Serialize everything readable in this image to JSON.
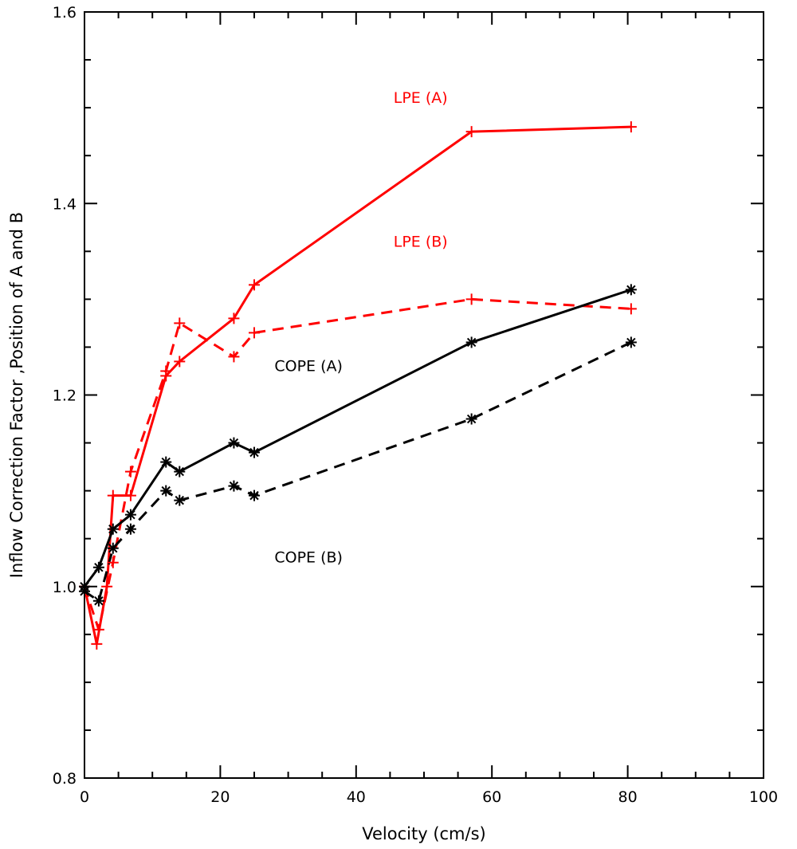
{
  "colors": {
    "lpe": "#ff0000",
    "cope": "#000000",
    "axes": "#000000",
    "background": "#ffffff"
  },
  "chart_data": {
    "type": "line",
    "title": "",
    "xlabel": "Velocity (cm/s)",
    "ylabel": "Inflow Correction Factor ,Position of A and B",
    "xlim": [
      0,
      100
    ],
    "ylim": [
      0.8,
      1.6
    ],
    "x_ticks": [
      0,
      20,
      40,
      60,
      80,
      100
    ],
    "x_tick_labels": [
      "0",
      "20",
      "40",
      "60",
      "80",
      "100"
    ],
    "y_ticks": [
      0.8,
      1.0,
      1.2,
      1.4,
      1.6
    ],
    "y_tick_labels": [
      "0.8",
      "1.0",
      "1.2",
      "1.4",
      "1.6"
    ],
    "grid": false,
    "legend": "none",
    "series": [
      {
        "name": "LPE (A)",
        "color": "#ff0000",
        "dash": "solid",
        "marker": "plus",
        "x": [
          0,
          1.8,
          3.3,
          4.2,
          6.8,
          12,
          14,
          22,
          25,
          57,
          80.5
        ],
        "y": [
          1.0,
          0.94,
          1.0,
          1.095,
          1.095,
          1.22,
          1.235,
          1.28,
          1.315,
          1.475,
          1.48
        ]
      },
      {
        "name": "LPE (B)",
        "color": "#ff0000",
        "dash": "dashed",
        "marker": "plus",
        "x": [
          0,
          2.1,
          4.2,
          6.8,
          12,
          14,
          22,
          25,
          57,
          80.5
        ],
        "y": [
          1.0,
          0.955,
          1.025,
          1.12,
          1.225,
          1.275,
          1.24,
          1.265,
          1.3,
          1.29
        ]
      },
      {
        "name": "COPE (A)",
        "color": "#000000",
        "dash": "solid",
        "marker": "asterisk",
        "x": [
          0,
          2.1,
          4.2,
          6.8,
          12,
          14,
          22,
          25,
          57,
          80.5
        ],
        "y": [
          1.0,
          1.02,
          1.06,
          1.075,
          1.13,
          1.12,
          1.15,
          1.14,
          1.255,
          1.31
        ]
      },
      {
        "name": "COPE (B)",
        "color": "#000000",
        "dash": "dashed",
        "marker": "asterisk",
        "x": [
          0,
          2.1,
          4.2,
          6.8,
          12,
          14,
          22,
          25,
          57,
          80.5
        ],
        "y": [
          0.995,
          0.985,
          1.04,
          1.06,
          1.1,
          1.09,
          1.105,
          1.095,
          1.175,
          1.255
        ]
      }
    ],
    "annotations": [
      {
        "text": "LPE (A)",
        "color": "#ff0000",
        "x": 49.5,
        "y": 1.505
      },
      {
        "text": "LPE (B)",
        "color": "#ff0000",
        "x": 49.5,
        "y": 1.355
      },
      {
        "text": "COPE (A)",
        "color": "#000000",
        "x": 33,
        "y": 1.225
      },
      {
        "text": "COPE (B)",
        "color": "#000000",
        "x": 33,
        "y": 1.025
      }
    ]
  }
}
